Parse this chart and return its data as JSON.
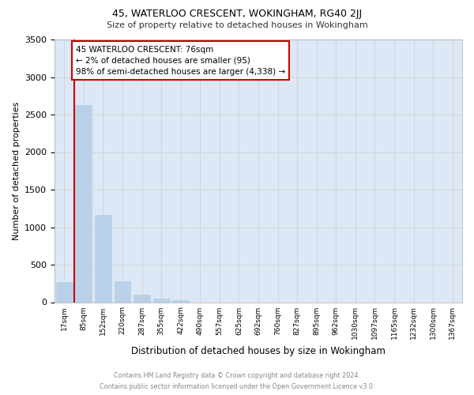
{
  "title1": "45, WATERLOO CRESCENT, WOKINGHAM, RG40 2JJ",
  "title2": "Size of property relative to detached houses in Wokingham",
  "xlabel": "Distribution of detached houses by size in Wokingham",
  "ylabel": "Number of detached properties",
  "categories": [
    "17sqm",
    "85sqm",
    "152sqm",
    "220sqm",
    "287sqm",
    "355sqm",
    "422sqm",
    "490sqm",
    "557sqm",
    "625sqm",
    "692sqm",
    "760sqm",
    "827sqm",
    "895sqm",
    "962sqm",
    "1030sqm",
    "1097sqm",
    "1165sqm",
    "1232sqm",
    "1300sqm",
    "1367sqm"
  ],
  "values": [
    270,
    2630,
    1165,
    275,
    95,
    45,
    30,
    0,
    0,
    0,
    0,
    0,
    0,
    0,
    0,
    0,
    0,
    0,
    0,
    0,
    0
  ],
  "bar_color": "#b8d0e8",
  "bar_edge_color": "#b8d0e8",
  "vline_color": "#cc0000",
  "annotation_text": "45 WATERLOO CRESCENT: 76sqm\n← 2% of detached houses are smaller (95)\n98% of semi-detached houses are larger (4,338) →",
  "annotation_box_color": "#ffffff",
  "annotation_box_edge": "#cc0000",
  "grid_color": "#d0d0d0",
  "background_color": "#dce8f5",
  "footer1": "Contains HM Land Registry data © Crown copyright and database right 2024.",
  "footer2": "Contains public sector information licensed under the Open Government Licence v3.0.",
  "ylim": [
    0,
    3500
  ],
  "yticks": [
    0,
    500,
    1000,
    1500,
    2000,
    2500,
    3000,
    3500
  ]
}
